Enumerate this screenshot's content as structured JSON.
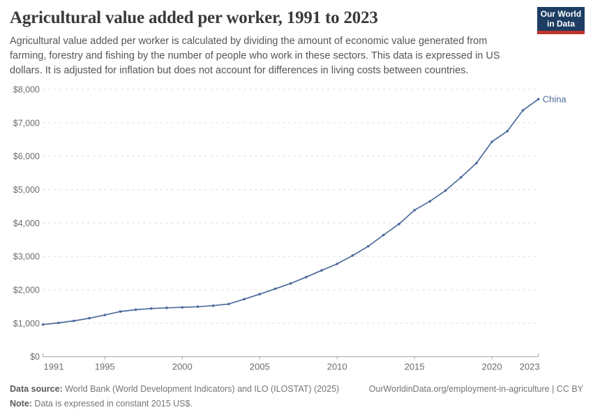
{
  "header": {
    "title": "Agricultural value added per worker, 1991 to 2023",
    "logo": {
      "line1": "Our World",
      "line2": "in Data"
    }
  },
  "subtitle": {
    "lines": [
      "Agricultural value added per worker is calculated by dividing the amount of economic value generated from",
      "farming, forestry and fishing by the number of people who work in these sectors. This data is expressed in US",
      "dollars. It is adjusted for inflation but does not account for differences in living costs between countries."
    ]
  },
  "chart_data": {
    "type": "line",
    "title": "Agricultural value added per worker, 1991 to 2023",
    "x": [
      1991,
      1992,
      1993,
      1994,
      1995,
      1996,
      1997,
      1998,
      1999,
      2000,
      2001,
      2002,
      2003,
      2004,
      2005,
      2006,
      2007,
      2008,
      2009,
      2010,
      2011,
      2012,
      2013,
      2014,
      2015,
      2016,
      2017,
      2018,
      2019,
      2020,
      2021,
      2022,
      2023
    ],
    "series": [
      {
        "name": "China",
        "values": [
          960,
          1010,
          1070,
          1150,
          1245,
          1350,
          1405,
          1440,
          1460,
          1475,
          1495,
          1525,
          1575,
          1720,
          1870,
          2030,
          2190,
          2380,
          2580,
          2775,
          3025,
          3300,
          3640,
          3970,
          4385,
          4650,
          4970,
          5365,
          5790,
          6430,
          6750,
          7370,
          7705
        ]
      }
    ],
    "xlabel": "",
    "ylabel": "",
    "xlim": [
      1991,
      2023
    ],
    "ylim": [
      0,
      8000
    ],
    "xticks": [
      1991,
      1995,
      2000,
      2005,
      2010,
      2015,
      2020,
      2023
    ],
    "yticks": [
      0,
      1000,
      2000,
      3000,
      4000,
      5000,
      6000,
      7000,
      8000
    ],
    "ytick_prefix": "$",
    "grid": "horizontal-dashed",
    "legend_position": "end-of-line-label",
    "end_label": "China"
  },
  "footer": {
    "source_label": "Data source:",
    "source_text": " World Bank (World Development Indicators) and ILO (ILOSTAT) (2025)",
    "link_text": "OurWorldinData.org/employment-in-agriculture | CC BY",
    "note_label": "Note:",
    "note_text": " Data is expressed in constant 2015 US$."
  },
  "colors": {
    "line": "#4C6A9C",
    "end_label": "#4C6A9C",
    "grid": "#d9d9d9",
    "axis": "#a3a3a3",
    "tick_label": "#6c6c6c",
    "logo_bg": "#1d3d63",
    "logo_stripe": "#c0352b"
  }
}
